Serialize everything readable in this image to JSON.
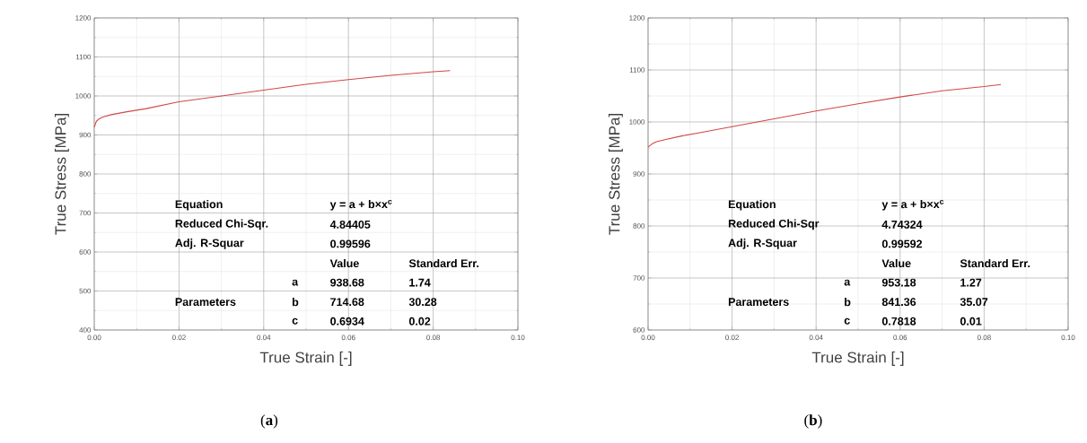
{
  "chart_data": [
    {
      "type": "line",
      "xlabel": "True Strain [-]",
      "ylabel": "True Stress [MPa]",
      "x": [
        0,
        0.0005,
        0.001,
        0.002,
        0.004,
        0.008,
        0.012,
        0.02,
        0.03,
        0.04,
        0.05,
        0.06,
        0.07,
        0.08,
        0.084
      ],
      "values": [
        920,
        935,
        940,
        946,
        952,
        960,
        967,
        985,
        1000,
        1015,
        1030,
        1042,
        1053,
        1062,
        1065
      ],
      "color": "#d04848",
      "xlim": [
        0,
        0.1
      ],
      "ylim": [
        400,
        1200
      ],
      "xticks": [
        {
          "value": 0,
          "label": "0.00"
        },
        {
          "value": 0.02,
          "label": "0.02"
        },
        {
          "value": 0.04,
          "label": "0.04"
        },
        {
          "value": 0.06,
          "label": "0.06"
        },
        {
          "value": 0.08,
          "label": "0.08"
        },
        {
          "value": 0.1,
          "label": "0.10"
        }
      ],
      "yticks": [
        400,
        500,
        600,
        700,
        800,
        900,
        1000,
        1100,
        1200
      ],
      "grid": true,
      "annotations": [
        "Equation",
        "y = a + b×x$^{c}$",
        "Reduced Chi-Sqr.",
        "4.84405",
        "Adj. R-Squar",
        "0.99596",
        "Value",
        "Standard Err.",
        "a",
        "938.68",
        "1.74",
        "Parameters",
        "b",
        "714.68",
        "30.28",
        "c",
        "0.6934",
        "0.02",
        "(**a**)"
      ]
    },
    {
      "type": "line",
      "xlabel": "True Strain [-]",
      "ylabel": "True Stress [MPa]",
      "x": [
        0,
        0.001,
        0.002,
        0.004,
        0.008,
        0.012,
        0.02,
        0.03,
        0.04,
        0.05,
        0.06,
        0.07,
        0.08,
        0.084
      ],
      "values": [
        952,
        958,
        962,
        966,
        973,
        979,
        991,
        1006,
        1021,
        1035,
        1048,
        1060,
        1068,
        1072
      ],
      "color": "#d04848",
      "xlim": [
        0,
        0.1
      ],
      "ylim": [
        600,
        1200
      ],
      "xticks": [
        {
          "value": 0,
          "label": "0.00"
        },
        {
          "value": 0.02,
          "label": "0.02"
        },
        {
          "value": 0.04,
          "label": "0.04"
        },
        {
          "value": 0.06,
          "label": "0.06"
        },
        {
          "value": 0.08,
          "label": "0.08"
        },
        {
          "value": 0.1,
          "label": "0.10"
        }
      ],
      "yticks": [
        600,
        700,
        800,
        900,
        1000,
        1100,
        1200
      ],
      "grid": true,
      "annotations": [
        "Equation",
        "y = a + b×x$^{c}$",
        "Reduced Chi-Sqr",
        "4.74324",
        "Adj. R-Squar",
        "0.99592",
        "Value",
        "Standard Err.",
        "a",
        "953.18",
        "1.27",
        "Parameters",
        "b",
        "841.36",
        "35.07",
        "c",
        "0.7818",
        "0.01",
        "(**b**)"
      ]
    }
  ]
}
